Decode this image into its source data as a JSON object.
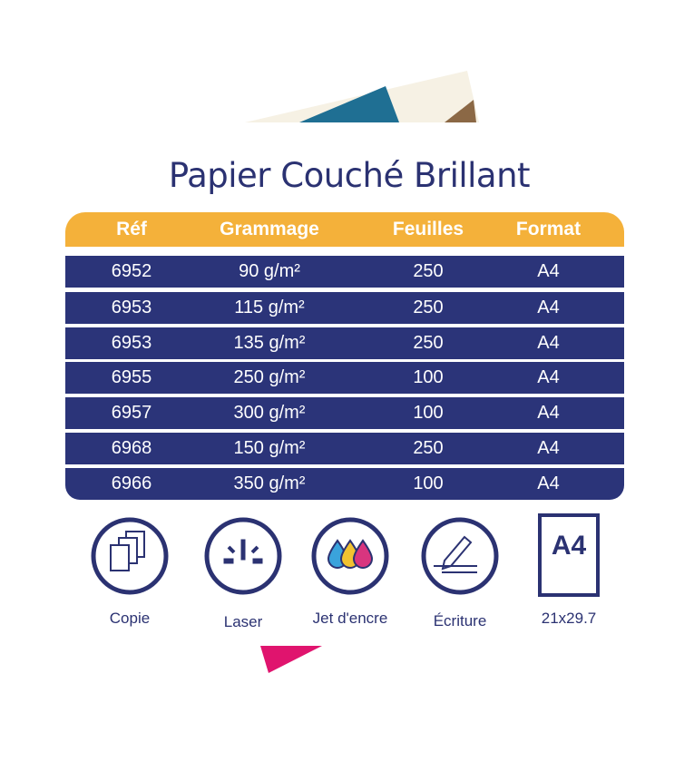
{
  "title": "Papier Couché Brillant",
  "table": {
    "headers": [
      "Réf",
      "Grammage",
      "Feuilles",
      "Format"
    ],
    "rows": [
      [
        "6952",
        "90 g/m²",
        "250",
        "A4"
      ],
      [
        "6953",
        "115 g/m²",
        "250",
        "A4"
      ],
      [
        "6953",
        "135 g/m²",
        "250",
        "A4"
      ],
      [
        "6955",
        "250 g/m²",
        "100",
        "A4"
      ],
      [
        "6957",
        "300 g/m²",
        "100",
        "A4"
      ],
      [
        "6968",
        "150 g/m²",
        "250",
        "A4"
      ],
      [
        "6966",
        "350 g/m²",
        "100",
        "A4"
      ]
    ]
  },
  "icons": [
    {
      "icon": "copy-pages-icon",
      "label": "Copie"
    },
    {
      "icon": "laser-icon",
      "label": "Laser"
    },
    {
      "icon": "ink-drops-icon",
      "label": "Jet d'encre"
    },
    {
      "icon": "pen-writing-icon",
      "label": "Écriture"
    },
    {
      "icon": "a4-sheet-icon",
      "label": "21x29.7",
      "badge": "A4"
    }
  ],
  "colors": {
    "navy": "#2b3479",
    "orange": "#f4b13a",
    "cyan": "#3aa3dc",
    "yellow": "#f2c230",
    "magenta": "#d8357f"
  }
}
